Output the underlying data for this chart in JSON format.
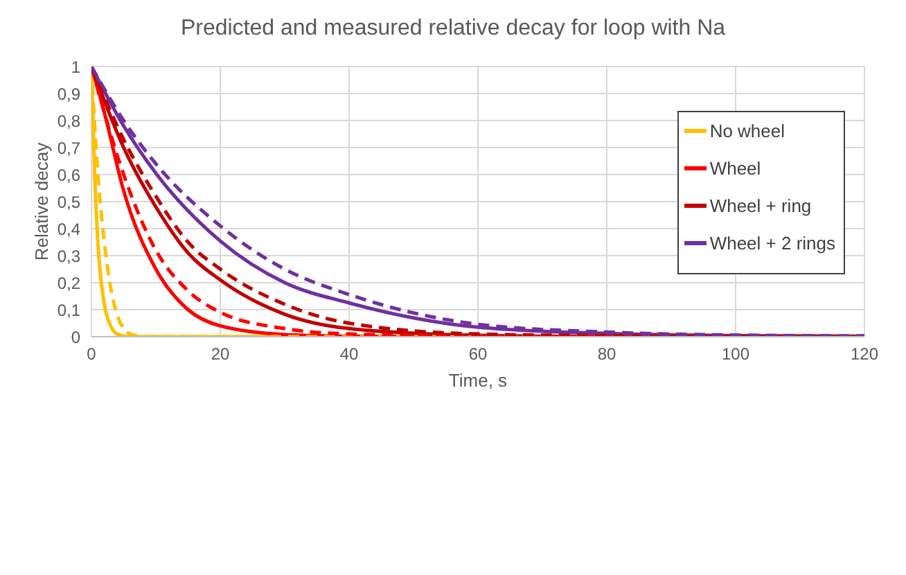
{
  "chart_data": {
    "type": "line",
    "title": "Predicted and measured relative decay for loop with Na",
    "xlabel": "Time, s",
    "ylabel": "Relative decay",
    "xlim": [
      0,
      120
    ],
    "xticks": [
      0,
      20,
      40,
      60,
      80,
      100,
      120
    ],
    "ylim": [
      0,
      1
    ],
    "yticks": [
      0,
      {
        "value": 0.1,
        "label": "0,1"
      },
      {
        "value": 0.2,
        "label": "0,2"
      },
      {
        "value": 0.3,
        "label": "0,3"
      },
      {
        "value": 0.4,
        "label": "0,4"
      },
      {
        "value": 0.5,
        "label": "0,5"
      },
      {
        "value": 0.6,
        "label": "0,6"
      },
      {
        "value": 0.7,
        "label": "0,7"
      },
      {
        "value": 0.8,
        "label": "0,8"
      },
      {
        "value": 0.9,
        "label": "0,9"
      },
      1
    ],
    "grid": true,
    "legend": "top right",
    "marker": "none",
    "series": [
      {
        "name": "No wheel",
        "color": "#ffc000",
        "line_style": "solid",
        "x": [
          0,
          0.5,
          1,
          2,
          3,
          4,
          6,
          120
        ],
        "values": [
          1,
          0.6,
          0.35,
          0.12,
          0.04,
          0.01,
          0,
          0
        ]
      },
      {
        "name": "Wheel",
        "color": "#ff0000",
        "line_style": "solid",
        "x": [
          0,
          2,
          5,
          10,
          15,
          20,
          30,
          40,
          60,
          120
        ],
        "values": [
          1,
          0.83,
          0.54,
          0.25,
          0.1,
          0.04,
          0.008,
          0.002,
          0,
          0
        ]
      },
      {
        "name": "Wheel + ring",
        "color": "#c00000",
        "line_style": "solid",
        "x": [
          0,
          5,
          10,
          15,
          20,
          30,
          40,
          60,
          80,
          120
        ],
        "values": [
          1,
          0.7,
          0.48,
          0.31,
          0.21,
          0.083,
          0.03,
          0.005,
          0,
          0
        ]
      },
      {
        "name": "Wheel + 2 rings",
        "color": "#7030a0",
        "line_style": "solid",
        "x": [
          0,
          5,
          10,
          20,
          30,
          40,
          60,
          80,
          100,
          120
        ],
        "values": [
          1,
          0.78,
          0.605,
          0.354,
          0.2,
          0.125,
          0.035,
          0.012,
          0.004,
          0.002
        ]
      },
      {
        "color": "#ffc000",
        "line_style": "dashed",
        "x": [
          0,
          1,
          2,
          3,
          4,
          5,
          6,
          8,
          120
        ],
        "values": [
          1,
          0.6,
          0.35,
          0.18,
          0.08,
          0.03,
          0.01,
          0,
          0
        ]
      },
      {
        "color": "#ff0000",
        "line_style": "dashed",
        "x": [
          0,
          5,
          10,
          15,
          20,
          30,
          40,
          60,
          120
        ],
        "values": [
          1,
          0.6,
          0.32,
          0.17,
          0.09,
          0.03,
          0.01,
          0.003,
          0
        ]
      },
      {
        "color": "#c00000",
        "line_style": "dashed",
        "x": [
          0,
          5,
          10,
          15,
          20,
          30,
          40,
          60,
          80,
          120
        ],
        "values": [
          1,
          0.73,
          0.52,
          0.35,
          0.25,
          0.12,
          0.05,
          0.01,
          0.004,
          0
        ]
      },
      {
        "color": "#7030a0",
        "line_style": "dashed",
        "x": [
          0,
          5,
          10,
          20,
          30,
          40,
          60,
          80,
          100,
          120
        ],
        "values": [
          1,
          0.8,
          0.64,
          0.41,
          0.25,
          0.156,
          0.046,
          0.017,
          0.006,
          0.003
        ]
      }
    ]
  }
}
